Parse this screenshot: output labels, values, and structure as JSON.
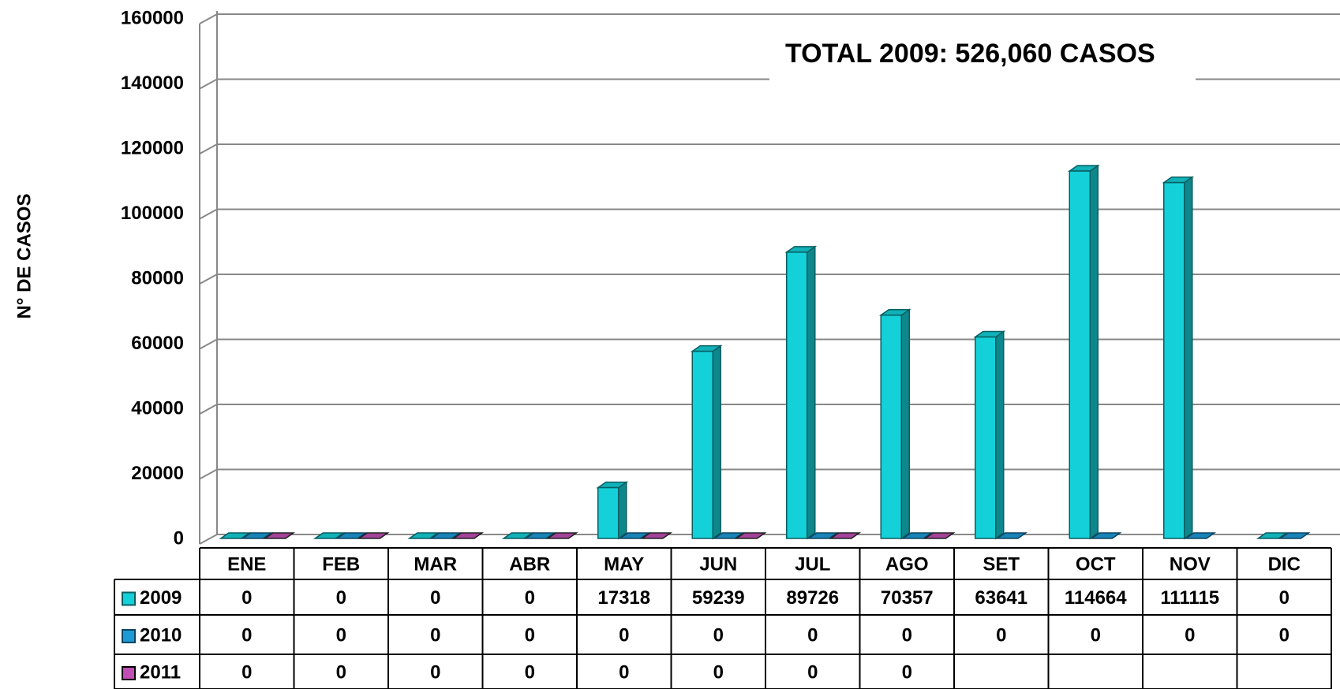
{
  "chart_data": {
    "type": "bar",
    "annotation": "TOTAL 2009: 526,060 CASOS",
    "y_label": "N° DE CASOS",
    "categories": [
      "ENE",
      "FEB",
      "MAR",
      "ABR",
      "MAY",
      "JUN",
      "JUL",
      "AGO",
      "SET",
      "OCT",
      "NOV",
      "DIC"
    ],
    "series": [
      {
        "name": "2009",
        "color": "#14d0d8",
        "values": [
          0,
          0,
          0,
          0,
          17318,
          59239,
          89726,
          70357,
          63641,
          114664,
          111115,
          0
        ]
      },
      {
        "name": "2010",
        "color": "#1c9ad6",
        "values": [
          0,
          0,
          0,
          0,
          0,
          0,
          0,
          0,
          0,
          0,
          0,
          0
        ]
      },
      {
        "name": "2011",
        "color": "#c04eb4",
        "values": [
          0,
          0,
          0,
          0,
          0,
          0,
          0,
          0,
          null,
          null,
          null,
          null
        ]
      }
    ],
    "ylim": [
      0,
      160000
    ],
    "yticks": [
      0,
      20000,
      40000,
      60000,
      80000,
      100000,
      120000,
      140000,
      160000
    ],
    "grid": true
  }
}
